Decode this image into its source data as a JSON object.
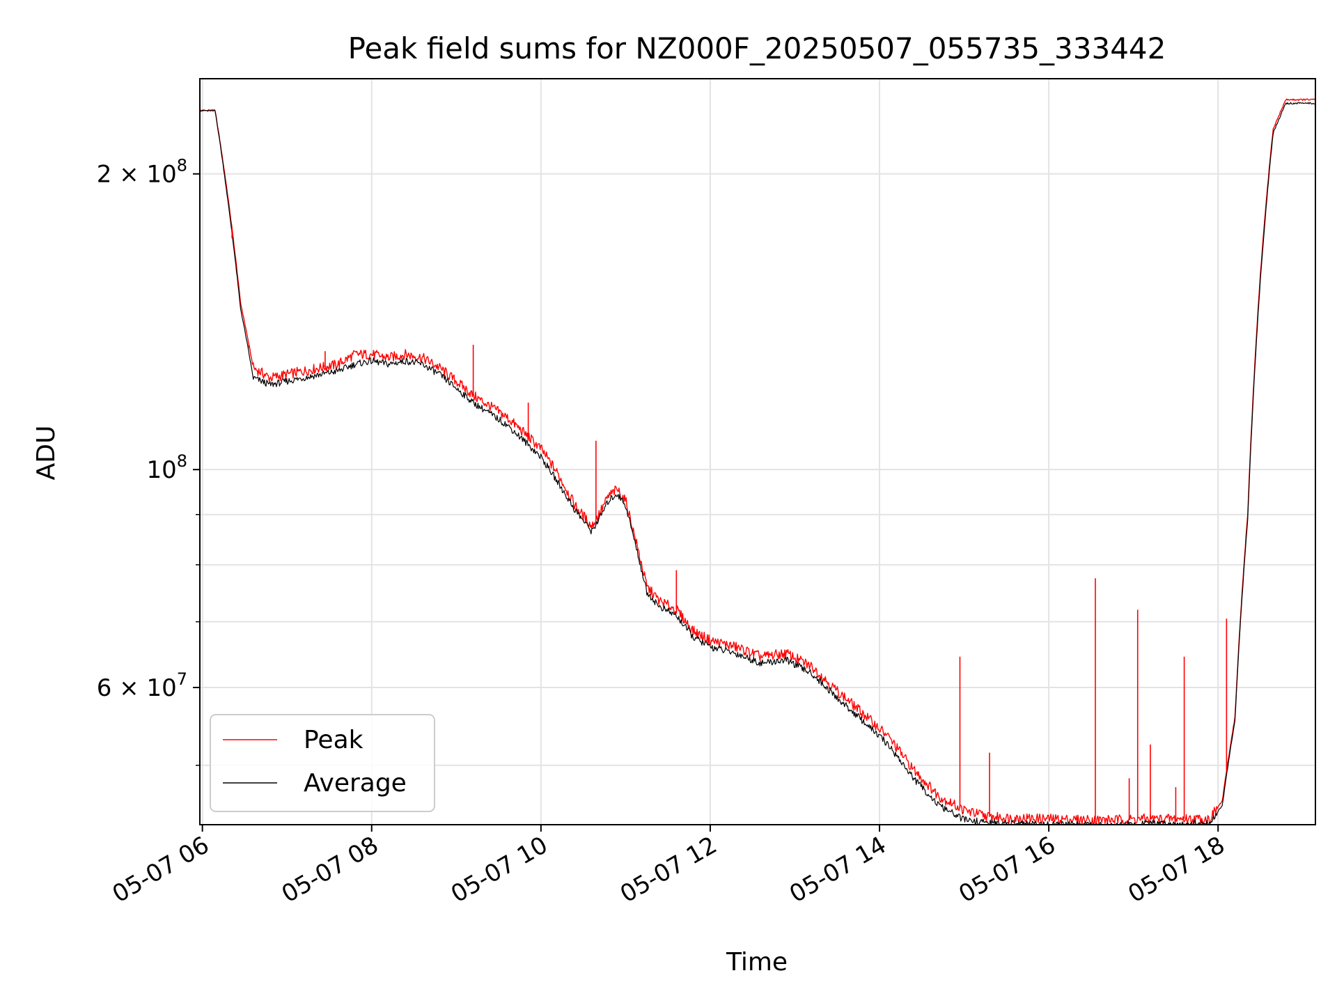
{
  "chart_data": {
    "type": "line",
    "title": "Peak field sums for NZ000F_20250507_055735_333442",
    "xlabel": "Time",
    "ylabel": "ADU",
    "yscale": "log",
    "ylim": [
      43500000,
      250000000
    ],
    "xlim_hours": [
      5.97,
      19.15
    ],
    "grid": true,
    "legend_position": "lower-left",
    "x_ticks": [
      {
        "hour": 6,
        "label": "05-07 06"
      },
      {
        "hour": 8,
        "label": "05-07 08"
      },
      {
        "hour": 10,
        "label": "05-07 10"
      },
      {
        "hour": 12,
        "label": "05-07 12"
      },
      {
        "hour": 14,
        "label": "05-07 14"
      },
      {
        "hour": 16,
        "label": "05-07 16"
      },
      {
        "hour": 18,
        "label": "05-07 18"
      }
    ],
    "y_major_ticks": [
      {
        "value": 200000000,
        "base": "2 × 10",
        "exp": "8"
      },
      {
        "value": 100000000,
        "base": "10",
        "exp": "8"
      },
      {
        "value": 60000000,
        "base": "6 × 10",
        "exp": "7"
      }
    ],
    "y_minor_ticks": [
      90000000,
      80000000,
      70000000,
      50000000
    ],
    "series": [
      {
        "name": "Peak",
        "color": "#ff0000",
        "x_hours": [
          5.97,
          6.15,
          6.3,
          6.45,
          6.6,
          6.8,
          7.0,
          7.2,
          7.4,
          7.6,
          7.8,
          8.0,
          8.2,
          8.4,
          8.6,
          8.8,
          9.0,
          9.2,
          9.4,
          9.6,
          9.8,
          10.0,
          10.2,
          10.4,
          10.6,
          10.7,
          10.8,
          10.9,
          11.0,
          11.1,
          11.25,
          11.4,
          11.6,
          11.8,
          12.0,
          12.3,
          12.6,
          12.9,
          13.2,
          13.5,
          13.8,
          14.1,
          14.4,
          14.7,
          15.0,
          15.3,
          15.6,
          16.0,
          16.4,
          16.8,
          17.2,
          17.6,
          17.9,
          18.05,
          18.2,
          18.35,
          18.5,
          18.65,
          18.8,
          19.15
        ],
        "values": [
          232000000,
          232000000,
          190000000,
          148000000,
          127000000,
          124000000,
          125000000,
          126000000,
          127000000,
          128000000,
          131000000,
          131000000,
          130000000,
          131000000,
          130000000,
          127000000,
          123000000,
          119000000,
          116000000,
          113000000,
          109000000,
          105000000,
          99000000,
          92000000,
          87500000,
          90500000,
          94000000,
          95500000,
          93000000,
          86000000,
          76000000,
          73500000,
          72000000,
          68500000,
          67000000,
          66000000,
          64500000,
          65000000,
          63000000,
          59500000,
          56500000,
          53500000,
          49500000,
          46500000,
          45000000,
          44300000,
          44200000,
          44100000,
          44000000,
          44000000,
          44100000,
          44100000,
          44100000,
          46000000,
          56000000,
          90000000,
          158000000,
          222000000,
          238000000,
          238000000
        ],
        "spikes": [
          {
            "hour": 6.35,
            "value": 172000000
          },
          {
            "hour": 6.55,
            "value": 133000000
          },
          {
            "hour": 7.45,
            "value": 132000000
          },
          {
            "hour": 9.2,
            "value": 134000000
          },
          {
            "hour": 9.85,
            "value": 117000000
          },
          {
            "hour": 10.65,
            "value": 107000000
          },
          {
            "hour": 11.6,
            "value": 79000000
          },
          {
            "hour": 14.95,
            "value": 64500000
          },
          {
            "hour": 15.3,
            "value": 51500000
          },
          {
            "hour": 16.55,
            "value": 77500000
          },
          {
            "hour": 16.95,
            "value": 48500000
          },
          {
            "hour": 17.05,
            "value": 72000000
          },
          {
            "hour": 17.2,
            "value": 52500000
          },
          {
            "hour": 17.5,
            "value": 47500000
          },
          {
            "hour": 17.6,
            "value": 64500000
          },
          {
            "hour": 18.1,
            "value": 70500000
          }
        ]
      },
      {
        "name": "Average",
        "color": "#000000",
        "x_hours": [
          5.97,
          6.15,
          6.3,
          6.45,
          6.6,
          6.8,
          7.0,
          7.2,
          7.4,
          7.6,
          7.8,
          8.0,
          8.2,
          8.4,
          8.6,
          8.8,
          9.0,
          9.2,
          9.4,
          9.6,
          9.8,
          10.0,
          10.2,
          10.4,
          10.6,
          10.7,
          10.8,
          10.9,
          11.0,
          11.1,
          11.25,
          11.4,
          11.6,
          11.8,
          12.0,
          12.3,
          12.6,
          12.9,
          13.2,
          13.5,
          13.8,
          14.1,
          14.4,
          14.7,
          15.0,
          15.3,
          15.6,
          16.0,
          16.4,
          16.8,
          17.2,
          17.6,
          17.9,
          18.05,
          18.2,
          18.35,
          18.5,
          18.65,
          18.8,
          19.15
        ],
        "values": [
          232000000,
          232000000,
          188000000,
          146000000,
          124000000,
          122000000,
          123000000,
          124000000,
          125000000,
          126000000,
          128000000,
          129000000,
          128000000,
          129000000,
          128000000,
          125000000,
          121000000,
          117000000,
          114000000,
          111000000,
          107000000,
          103000000,
          97000000,
          91000000,
          86500000,
          89500000,
          93000000,
          94500000,
          92000000,
          85000000,
          75000000,
          72500000,
          71000000,
          67500000,
          66000000,
          65000000,
          63500000,
          64000000,
          62000000,
          58500000,
          55500000,
          52500000,
          48500000,
          45500000,
          44000000,
          43700000,
          43600000,
          43500000,
          43500000,
          43500000,
          43600000,
          43600000,
          43600000,
          45500000,
          55500000,
          89000000,
          156000000,
          220000000,
          236000000,
          236000000
        ]
      }
    ]
  }
}
